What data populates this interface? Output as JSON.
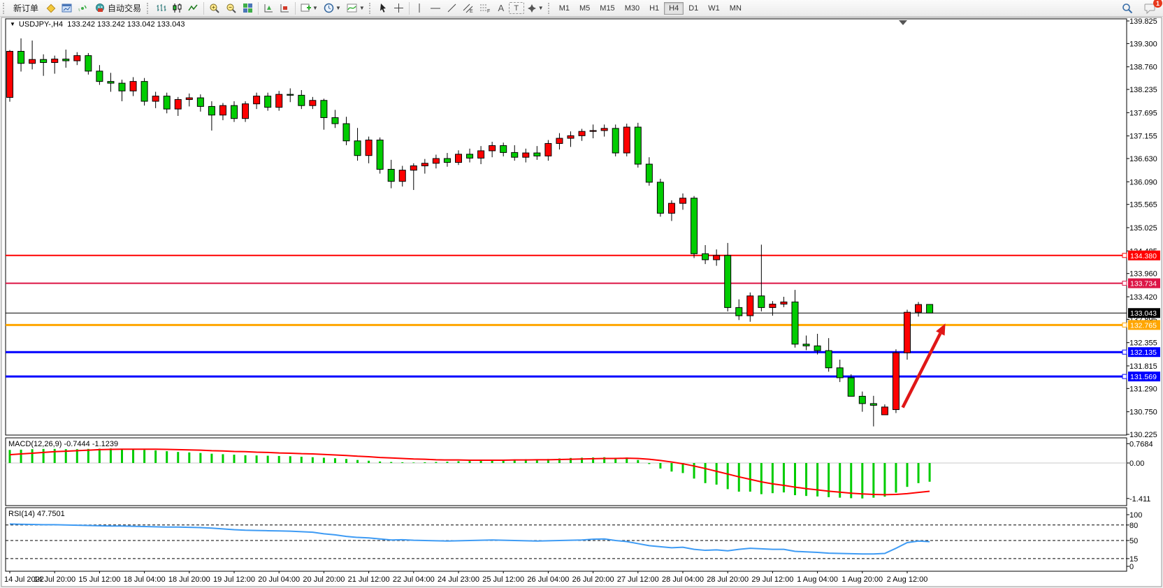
{
  "toolbar": {
    "new_order_label": "新订单",
    "auto_trading_label": "自动交易",
    "text_tool_label": "A",
    "label_tool_label": "T",
    "channel_letter": "E",
    "fibo_letter": "F",
    "timeframes": [
      "M1",
      "M5",
      "M15",
      "M30",
      "H1",
      "H4",
      "D1",
      "W1",
      "MN"
    ],
    "active_timeframe": "H4",
    "chat_badge": "1"
  },
  "chart": {
    "title": "USDJPY-,H4",
    "ohlc": "133.242 133.242 133.042 133.043",
    "macd_label": "MACD(12,26,9) -0.7444 -1.1239",
    "rsi_label": "RSI(14) 47.7501"
  },
  "chart_data": {
    "type": "candlestick",
    "symbol": "USDJPY-",
    "period": "H4",
    "colors": {
      "bull": "#ff0000",
      "bear": "#00cc00",
      "outline": "#000000",
      "background": "#ffffff",
      "macd_hist": "#00cc00",
      "macd_signal": "#ff0000",
      "rsi_line": "#3e9bf4",
      "arrow": "#e01717"
    },
    "price_axis_ticks": [
      "139.825",
      "139.300",
      "138.760",
      "138.235",
      "137.695",
      "137.155",
      "136.630",
      "136.090",
      "135.565",
      "135.025",
      "134.485",
      "133.960",
      "133.420",
      "132.895",
      "132.355",
      "131.815",
      "131.290",
      "130.750",
      "130.225"
    ],
    "ylim": [
      130.175,
      139.875
    ],
    "candles_ohlc": [
      [
        138.05,
        139.15,
        137.95,
        139.12
      ],
      [
        139.12,
        139.42,
        138.65,
        138.84
      ],
      [
        138.84,
        139.37,
        138.7,
        138.93
      ],
      [
        138.93,
        139.05,
        138.55,
        138.86
      ],
      [
        138.86,
        139.02,
        138.6,
        138.94
      ],
      [
        138.94,
        139.16,
        138.74,
        138.9
      ],
      [
        138.9,
        139.1,
        138.8,
        139.02
      ],
      [
        139.02,
        139.08,
        138.58,
        138.66
      ],
      [
        138.66,
        138.8,
        138.34,
        138.42
      ],
      [
        138.42,
        138.62,
        138.18,
        138.38
      ],
      [
        138.38,
        138.46,
        137.96,
        138.2
      ],
      [
        138.2,
        138.52,
        138.08,
        138.42
      ],
      [
        138.42,
        138.5,
        137.86,
        137.96
      ],
      [
        137.96,
        138.18,
        137.8,
        138.08
      ],
      [
        138.08,
        138.16,
        137.68,
        137.78
      ],
      [
        137.78,
        138.06,
        137.62,
        138.0
      ],
      [
        138.0,
        138.14,
        137.84,
        138.04
      ],
      [
        138.04,
        138.12,
        137.72,
        137.84
      ],
      [
        137.84,
        137.96,
        137.28,
        137.64
      ],
      [
        137.64,
        137.92,
        137.52,
        137.86
      ],
      [
        137.86,
        137.96,
        137.48,
        137.56
      ],
      [
        137.56,
        137.96,
        137.48,
        137.9
      ],
      [
        137.9,
        138.16,
        137.78,
        138.08
      ],
      [
        138.08,
        138.16,
        137.74,
        137.82
      ],
      [
        137.82,
        138.2,
        137.74,
        138.12
      ],
      [
        138.12,
        138.26,
        137.94,
        138.1
      ],
      [
        138.1,
        138.22,
        137.78,
        137.86
      ],
      [
        137.86,
        138.06,
        137.78,
        137.98
      ],
      [
        137.98,
        138.02,
        137.3,
        137.58
      ],
      [
        137.58,
        137.76,
        137.34,
        137.44
      ],
      [
        137.44,
        137.6,
        136.94,
        137.04
      ],
      [
        137.04,
        137.34,
        136.58,
        136.7
      ],
      [
        136.7,
        137.14,
        136.52,
        137.06
      ],
      [
        137.06,
        137.12,
        136.28,
        136.38
      ],
      [
        136.38,
        136.6,
        135.94,
        136.1
      ],
      [
        136.1,
        136.46,
        135.98,
        136.36
      ],
      [
        136.36,
        136.52,
        135.9,
        136.46
      ],
      [
        136.46,
        136.62,
        136.28,
        136.52
      ],
      [
        136.52,
        136.72,
        136.4,
        136.63
      ],
      [
        136.63,
        136.76,
        136.44,
        136.54
      ],
      [
        136.54,
        136.82,
        136.48,
        136.73
      ],
      [
        136.73,
        136.86,
        136.54,
        136.64
      ],
      [
        136.64,
        136.92,
        136.5,
        136.81
      ],
      [
        136.81,
        137.02,
        136.66,
        136.93
      ],
      [
        136.93,
        137.0,
        136.68,
        136.77
      ],
      [
        136.77,
        136.94,
        136.58,
        136.66
      ],
      [
        136.66,
        136.86,
        136.54,
        136.76
      ],
      [
        136.76,
        136.92,
        136.6,
        136.69
      ],
      [
        136.69,
        137.06,
        136.58,
        136.98
      ],
      [
        136.98,
        137.22,
        136.84,
        137.1
      ],
      [
        137.1,
        137.26,
        136.9,
        137.16
      ],
      [
        137.16,
        137.32,
        137.04,
        137.26
      ],
      [
        137.26,
        137.42,
        137.1,
        137.28
      ],
      [
        137.28,
        137.42,
        137.14,
        137.33
      ],
      [
        137.33,
        137.42,
        136.68,
        136.76
      ],
      [
        136.76,
        137.44,
        136.68,
        137.36
      ],
      [
        137.36,
        137.46,
        136.42,
        136.5
      ],
      [
        136.5,
        136.66,
        136.0,
        136.08
      ],
      [
        136.08,
        136.16,
        135.28,
        135.36
      ],
      [
        135.36,
        135.66,
        135.18,
        135.59
      ],
      [
        135.59,
        135.82,
        135.44,
        135.71
      ],
      [
        135.71,
        135.76,
        134.32,
        134.42
      ],
      [
        134.42,
        134.62,
        134.18,
        134.28
      ],
      [
        134.28,
        134.52,
        134.14,
        134.38
      ],
      [
        134.38,
        134.67,
        133.08,
        133.17
      ],
      [
        133.17,
        133.36,
        132.88,
        132.98
      ],
      [
        132.98,
        133.52,
        132.84,
        133.44
      ],
      [
        133.44,
        134.63,
        133.08,
        133.17
      ],
      [
        133.17,
        133.32,
        132.98,
        133.25
      ],
      [
        133.25,
        133.42,
        133.18,
        133.3
      ],
      [
        133.3,
        133.58,
        132.24,
        132.32
      ],
      [
        132.32,
        132.52,
        132.18,
        132.28
      ],
      [
        132.28,
        132.56,
        132.08,
        132.17
      ],
      [
        132.17,
        132.46,
        131.68,
        131.77
      ],
      [
        131.77,
        131.96,
        131.44,
        131.54
      ],
      [
        131.54,
        131.62,
        131.2,
        131.11
      ],
      [
        131.11,
        131.22,
        130.75,
        130.94
      ],
      [
        130.94,
        131.12,
        130.41,
        130.9
      ],
      [
        130.68,
        130.92,
        130.75,
        130.86
      ],
      [
        130.8,
        132.2,
        130.72,
        132.12
      ],
      [
        132.12,
        133.12,
        131.96,
        133.06
      ],
      [
        133.06,
        133.3,
        132.96,
        133.24
      ],
      [
        133.242,
        133.242,
        133.042,
        133.043
      ]
    ],
    "hlines": [
      {
        "price": 134.38,
        "label": "134.380",
        "color": "#ff0000",
        "width": 2
      },
      {
        "price": 133.734,
        "label": "133.734",
        "color": "#dc1445",
        "width": 2
      },
      {
        "price": 133.043,
        "label": "133.043",
        "color": "#000000",
        "width": 1,
        "current": true
      },
      {
        "price": 132.765,
        "label": "132.765",
        "color": "#ffa600",
        "width": 3
      },
      {
        "price": 132.135,
        "label": "132.135",
        "color": "#0000ff",
        "width": 3
      },
      {
        "price": 131.569,
        "label": "131.569",
        "color": "#0000ff",
        "width": 3
      }
    ],
    "arrow": {
      "x1_bar": 79.6,
      "y1_price": 130.85,
      "x2_bar": 83.4,
      "y2_price": 132.8
    },
    "macd": {
      "axis_ticks": [
        "0.7684",
        "0.00",
        "-1.411"
      ],
      "axis_tick_values": [
        0.7684,
        0.0,
        -1.411
      ],
      "values_main": [
        0.52,
        0.53,
        0.55,
        0.56,
        0.56,
        0.55,
        0.55,
        0.56,
        0.57,
        0.58,
        0.57,
        0.55,
        0.52,
        0.5,
        0.47,
        0.44,
        0.42,
        0.4,
        0.37,
        0.35,
        0.33,
        0.31,
        0.3,
        0.29,
        0.28,
        0.27,
        0.25,
        0.23,
        0.21,
        0.19,
        0.16,
        0.12,
        0.09,
        0.06,
        0.04,
        0.03,
        0.02,
        0.03,
        0.04,
        0.05,
        0.07,
        0.08,
        0.1,
        0.12,
        0.13,
        0.14,
        0.15,
        0.15,
        0.16,
        0.18,
        0.2,
        0.21,
        0.22,
        0.23,
        0.21,
        0.22,
        0.12,
        -0.04,
        -0.22,
        -0.34,
        -0.4,
        -0.62,
        -0.8,
        -0.86,
        -1.04,
        -1.14,
        -1.14,
        -1.24,
        -1.2,
        -1.17,
        -1.28,
        -1.31,
        -1.33,
        -1.36,
        -1.38,
        -1.4,
        -1.41,
        -1.38,
        -1.34,
        -1.18,
        -0.95,
        -0.8,
        -0.7444
      ],
      "values_signal": [
        0.33,
        0.36,
        0.39,
        0.42,
        0.45,
        0.47,
        0.49,
        0.51,
        0.53,
        0.54,
        0.55,
        0.55,
        0.55,
        0.55,
        0.54,
        0.53,
        0.52,
        0.51,
        0.49,
        0.48,
        0.46,
        0.45,
        0.43,
        0.42,
        0.4,
        0.39,
        0.37,
        0.36,
        0.34,
        0.32,
        0.3,
        0.27,
        0.25,
        0.22,
        0.2,
        0.18,
        0.16,
        0.15,
        0.13,
        0.12,
        0.12,
        0.11,
        0.11,
        0.11,
        0.11,
        0.12,
        0.12,
        0.13,
        0.13,
        0.14,
        0.15,
        0.16,
        0.17,
        0.18,
        0.18,
        0.19,
        0.18,
        0.15,
        0.1,
        0.04,
        -0.03,
        -0.12,
        -0.22,
        -0.33,
        -0.44,
        -0.55,
        -0.65,
        -0.75,
        -0.83,
        -0.89,
        -0.96,
        -1.02,
        -1.07,
        -1.12,
        -1.16,
        -1.2,
        -1.23,
        -1.25,
        -1.26,
        -1.25,
        -1.22,
        -1.17,
        -1.1239
      ]
    },
    "rsi": {
      "axis_ticks": [
        "100",
        "80",
        "50",
        "15",
        "0"
      ],
      "axis_tick_values": [
        100,
        80,
        50,
        15,
        0
      ],
      "levels": [
        80,
        50,
        15
      ],
      "values": [
        82,
        81.5,
        81,
        80.5,
        80.5,
        80,
        79.5,
        79,
        78.5,
        78,
        78,
        77.5,
        77,
        76.5,
        76,
        76,
        75.5,
        75,
        74,
        72.5,
        71,
        70,
        69.5,
        69,
        68.5,
        68,
        67,
        66,
        63,
        61,
        58,
        56,
        55,
        53,
        51,
        51.5,
        50.5,
        50,
        49.5,
        49,
        49.5,
        50,
        50.5,
        51,
        50.5,
        50,
        49.5,
        49,
        49.5,
        50,
        50.5,
        51,
        52.5,
        53,
        50,
        48,
        44,
        40,
        38,
        36,
        37,
        33,
        31,
        32,
        30,
        33,
        35,
        34,
        33,
        33,
        29,
        28,
        27,
        25.5,
        25,
        24.5,
        24,
        24,
        25,
        35,
        46,
        49,
        47.7501
      ]
    },
    "x_labels": [
      "14 Jul 2022",
      "14 Jul 20:00",
      "15 Jul 12:00",
      "18 Jul 04:00",
      "18 Jul 20:00",
      "19 Jul 12:00",
      "20 Jul 04:00",
      "20 Jul 20:00",
      "21 Jul 12:00",
      "22 Jul 04:00",
      "24 Jul 23:00",
      "25 Jul 12:00",
      "26 Jul 04:00",
      "26 Jul 20:00",
      "27 Jul 12:00",
      "28 Jul 04:00",
      "28 Jul 20:00",
      "29 Jul 12:00",
      "1 Aug 04:00",
      "1 Aug 20:00",
      "2 Aug 12:00"
    ],
    "x_label_every": 4
  }
}
